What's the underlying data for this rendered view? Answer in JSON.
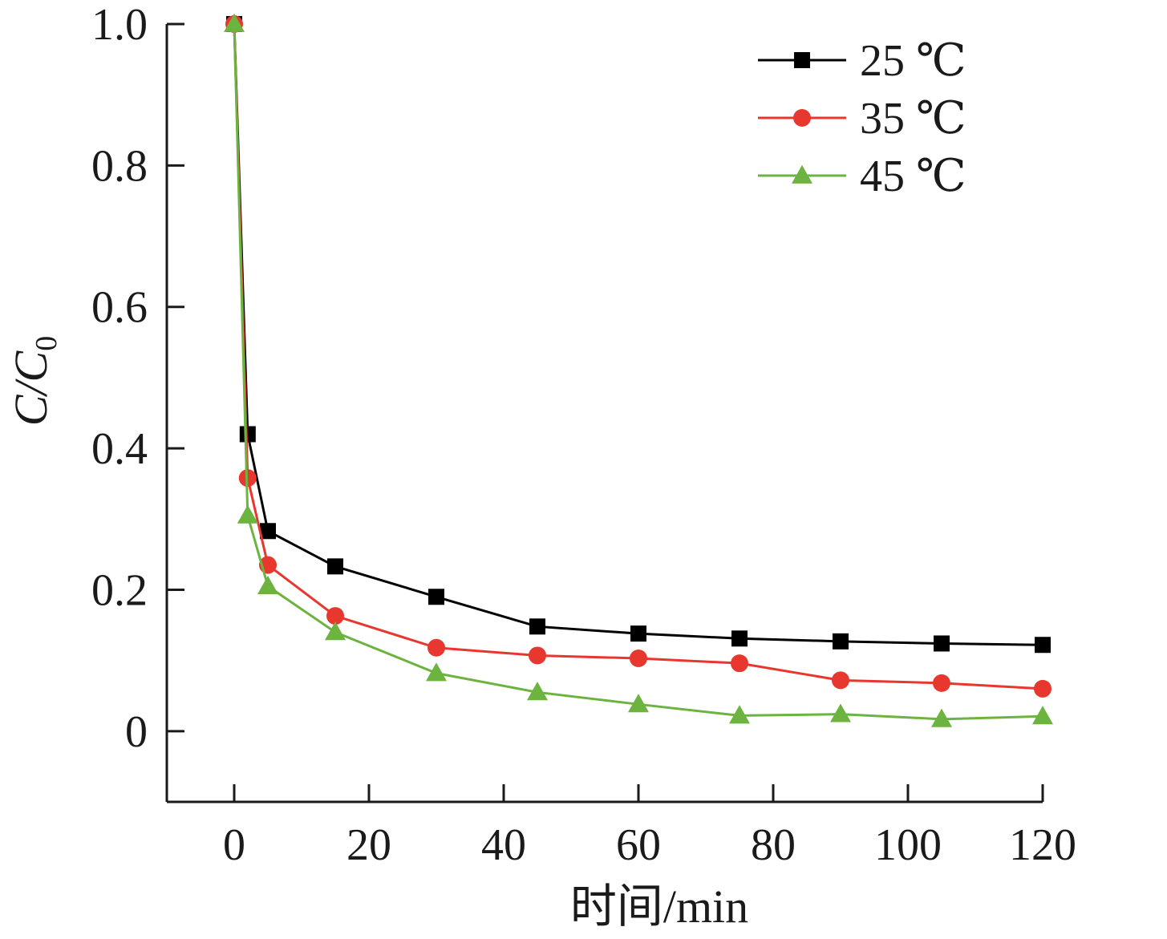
{
  "chart_data": {
    "type": "line",
    "title": "",
    "xlabel": "时间/min",
    "ylabel": {
      "main": "C/C",
      "subscript": "0"
    },
    "xlim": [
      -10,
      120
    ],
    "ylim": [
      -0.1,
      1.0
    ],
    "xticks": [
      0,
      20,
      40,
      60,
      80,
      100,
      120
    ],
    "xtick_labels": [
      "0",
      "20",
      "40",
      "60",
      "80",
      "100",
      "120"
    ],
    "yticks": [
      0,
      0.2,
      0.4,
      0.6,
      0.8,
      1.0
    ],
    "ytick_labels": [
      "0",
      "0.2",
      "0.4",
      "0.6",
      "0.8",
      "1.0"
    ],
    "grid": false,
    "legend_position": "top-right",
    "x": [
      0,
      2,
      5,
      15,
      30,
      45,
      60,
      75,
      90,
      105,
      120
    ],
    "series": [
      {
        "name": "25 ℃",
        "color": "#000000",
        "marker": "square",
        "values": [
          1.0,
          0.42,
          0.283,
          0.233,
          0.19,
          0.148,
          0.138,
          0.131,
          0.127,
          0.124,
          0.122
        ]
      },
      {
        "name": "35 ℃",
        "color": "#e8372e",
        "marker": "circle",
        "values": [
          1.0,
          0.358,
          0.235,
          0.163,
          0.118,
          0.107,
          0.103,
          0.096,
          0.072,
          0.068,
          0.06
        ]
      },
      {
        "name": "45 ℃",
        "color": "#6db33f",
        "marker": "triangle",
        "values": [
          1.0,
          0.305,
          0.205,
          0.14,
          0.082,
          0.055,
          0.038,
          0.022,
          0.024,
          0.017,
          0.021
        ]
      }
    ]
  }
}
